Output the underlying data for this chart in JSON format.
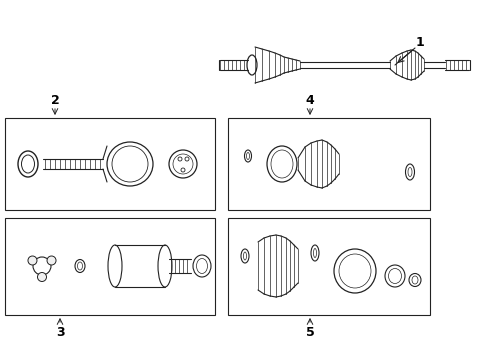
{
  "bg_color": "#ffffff",
  "line_color": "#222222",
  "box_color": "#222222",
  "label_color": "#000000",
  "figsize": [
    4.9,
    3.6
  ],
  "dpi": 100
}
